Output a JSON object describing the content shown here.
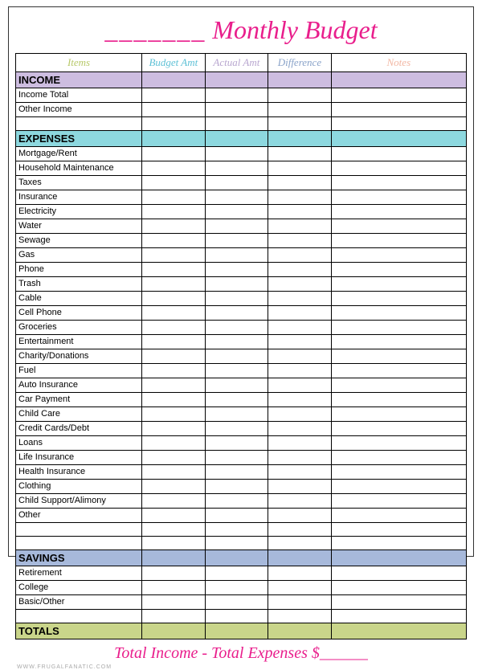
{
  "title": {
    "blank": "_______",
    "text": "Monthly Budget",
    "color": "#e91e8c"
  },
  "columns": [
    {
      "key": "items",
      "label": "Items",
      "color": "#b8c96a"
    },
    {
      "key": "budget",
      "label": "Budget Amt",
      "color": "#5fc1d6"
    },
    {
      "key": "actual",
      "label": "Actual Amt",
      "color": "#b9a7d0"
    },
    {
      "key": "diff",
      "label": "Difference",
      "color": "#8aa3c9"
    },
    {
      "key": "notes",
      "label": "Notes",
      "color": "#f2b7a3"
    }
  ],
  "sections": [
    {
      "name": "INCOME",
      "bg": "#cdbde0",
      "rows": [
        "Income Total",
        "Other Income"
      ],
      "spacer_after": 1
    },
    {
      "name": "EXPENSES",
      "bg": "#8dd8df",
      "rows": [
        "Mortgage/Rent",
        "Household Maintenance",
        "Taxes",
        "Insurance",
        "Electricity",
        "Water",
        "Sewage",
        "Gas",
        "Phone",
        "Trash",
        "Cable",
        "Cell Phone",
        "Groceries",
        "Entertainment",
        "Charity/Donations",
        "Fuel",
        "Auto Insurance",
        "Car Payment",
        "Child Care",
        "Credit Cards/Debt",
        "Loans",
        "Life Insurance",
        "Health Insurance",
        "Clothing",
        "Child Support/Alimony",
        "Other"
      ],
      "spacer_after": 2
    },
    {
      "name": "SAVINGS",
      "bg": "#a7b9db",
      "rows": [
        "Retirement",
        "College",
        "Basic/Other"
      ],
      "spacer_after": 1
    },
    {
      "name": "TOTALS",
      "bg": "#c9d58a",
      "rows": [],
      "spacer_after": 0
    }
  ],
  "footer": {
    "text": "Total Income - Total Expenses $______",
    "color": "#e91e8c"
  },
  "attribution": "WWW.FRUGALFANATIC.COM"
}
